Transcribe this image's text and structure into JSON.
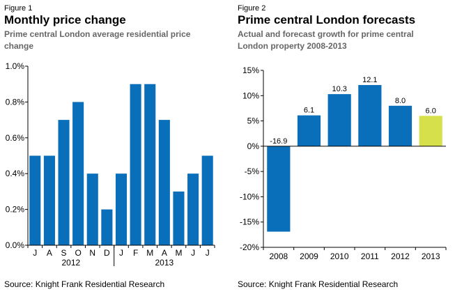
{
  "colors": {
    "actual": "#0a6fba",
    "forecast": "#d5e04a",
    "axis": "#000000"
  },
  "figures": [
    {
      "label": "Figure 1",
      "title": "Monthly price change",
      "subtitle": "Prime central London average residential price change",
      "source": "Source: Knight Frank Residential Research"
    },
    {
      "label": "Figure 2",
      "title": "Prime central London forecasts",
      "subtitle": "Actual and forecast growth for prime central London property 2008-2013",
      "source": "Source: Knight Frank Residential Research"
    }
  ],
  "chart_data": [
    {
      "type": "bar",
      "title": "Monthly price change",
      "subtitle": "Prime central London average residential price change",
      "categories": [
        "J",
        "A",
        "S",
        "O",
        "N",
        "D",
        "J",
        "F",
        "M",
        "A",
        "M",
        "J",
        "J"
      ],
      "year_groups": [
        {
          "label": "2012",
          "count": 6
        },
        {
          "label": "2013",
          "count": 7
        }
      ],
      "values": [
        0.5,
        0.5,
        0.7,
        0.8,
        0.4,
        0.2,
        0.4,
        0.9,
        0.9,
        0.7,
        0.3,
        0.4,
        0.5
      ],
      "unit": "%",
      "ylim": [
        0,
        1.0
      ],
      "yticks": [
        0,
        0.2,
        0.4,
        0.6,
        0.8,
        1.0
      ],
      "ytick_labels": [
        "0.0%",
        "0.2%",
        "0.4%",
        "0.6%",
        "0.8%",
        "1.0%"
      ],
      "xlabel": "",
      "ylabel": "",
      "grid": false,
      "legend": "none"
    },
    {
      "type": "bar",
      "title": "Prime central London forecasts",
      "subtitle": "Actual and forecast growth for prime central London property 2008-2013",
      "categories": [
        "2008",
        "2009",
        "2010",
        "2011",
        "2012",
        "2013"
      ],
      "values": [
        -16.9,
        6.1,
        10.3,
        12.1,
        8.0,
        6.0
      ],
      "data_labels": [
        "-16.9",
        "6.1",
        "10.3",
        "12.1",
        "8.0",
        "6.0"
      ],
      "forecast_flags": [
        false,
        false,
        false,
        false,
        false,
        true
      ],
      "unit": "%",
      "ylim": [
        -20,
        15
      ],
      "yticks": [
        -20,
        -15,
        -10,
        -5,
        0,
        5,
        10,
        15
      ],
      "ytick_labels": [
        "-20%",
        "-15%",
        "-10%",
        "-5%",
        "0%",
        "5%",
        "10%",
        "15%"
      ],
      "xlabel": "",
      "ylabel": "",
      "grid": false,
      "legend": "none"
    }
  ]
}
